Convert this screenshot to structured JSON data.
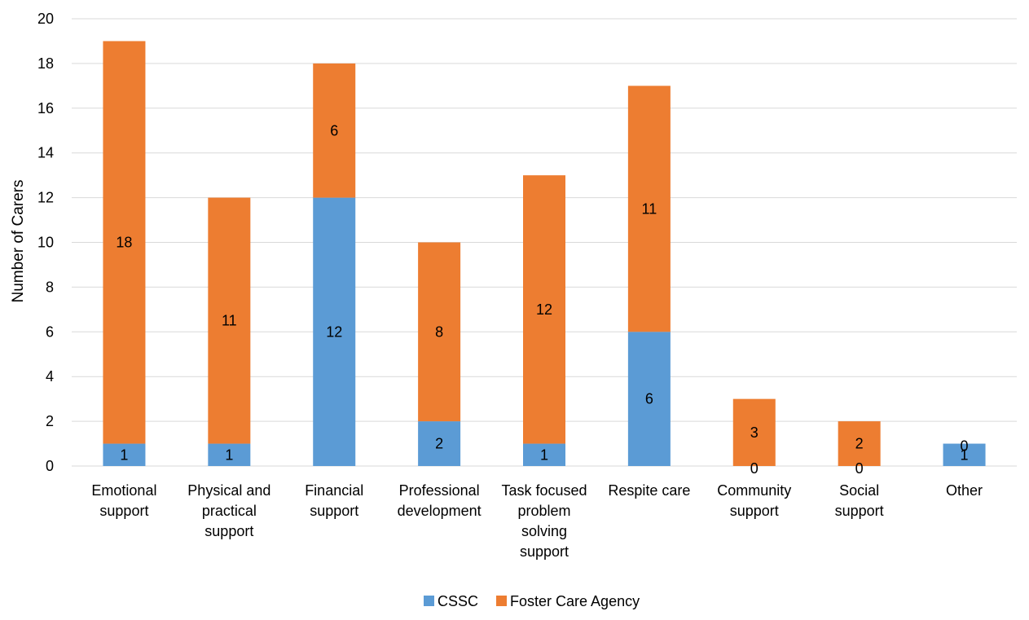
{
  "chart_data": {
    "type": "bar",
    "stacked": true,
    "categories": [
      [
        "Emotional",
        "support"
      ],
      [
        "Physical and",
        "practical",
        "support"
      ],
      [
        "Financial",
        "support"
      ],
      [
        "Professional",
        "development"
      ],
      [
        "Task focused",
        "problem",
        "solving",
        "support"
      ],
      [
        "Respite care"
      ],
      [
        "Community",
        "support"
      ],
      [
        "Social",
        "support"
      ],
      [
        "Other"
      ]
    ],
    "series": [
      {
        "name": "CSSC",
        "color": "#5B9BD5",
        "values": [
          1,
          1,
          12,
          2,
          1,
          6,
          0,
          0,
          1
        ]
      },
      {
        "name": "Foster Care Agency",
        "color": "#ED7D31",
        "values": [
          18,
          11,
          6,
          8,
          12,
          11,
          3,
          2,
          0
        ]
      }
    ],
    "title": "",
    "xlabel": "",
    "ylabel": "Number of Carers",
    "ylim": [
      0,
      20
    ],
    "yticks": [
      0,
      2,
      4,
      6,
      8,
      10,
      12,
      14,
      16,
      18,
      20
    ],
    "grid": true,
    "gridColor": "#D9D9D9",
    "legend_position": "bottom"
  }
}
